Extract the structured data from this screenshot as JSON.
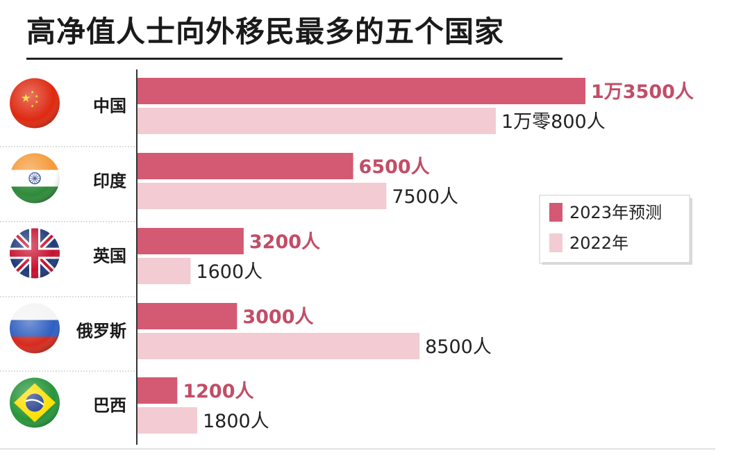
{
  "title": "高净值人士向外移民最多的五个国家",
  "colors": {
    "series_2023": "#d35a72",
    "series_2022": "#f2ccd2",
    "label_2023": "#c24d67",
    "label_2022": "#222222",
    "axis": "#333333",
    "separator": "#bbbbbb"
  },
  "chart_data": {
    "type": "bar",
    "orientation": "horizontal",
    "categories": [
      "中国",
      "印度",
      "英国",
      "俄罗斯",
      "巴西"
    ],
    "series": [
      {
        "name": "2023年预测",
        "values": [
          13500,
          6500,
          3200,
          3000,
          1200
        ],
        "labels": [
          "1万3500人",
          "6500人",
          "3200人",
          "3000人",
          "1200人"
        ]
      },
      {
        "name": "2022年",
        "values": [
          10800,
          7500,
          1600,
          8500,
          1800
        ],
        "labels": [
          "1万零800人",
          "7500人",
          "1600人",
          "8500人",
          "1800人"
        ]
      }
    ],
    "legend_position": "right",
    "grid": false,
    "xlim": [
      0,
      14000
    ]
  },
  "flags": [
    "china-flag-icon",
    "india-flag-icon",
    "uk-flag-icon",
    "russia-flag-icon",
    "brazil-flag-icon"
  ]
}
